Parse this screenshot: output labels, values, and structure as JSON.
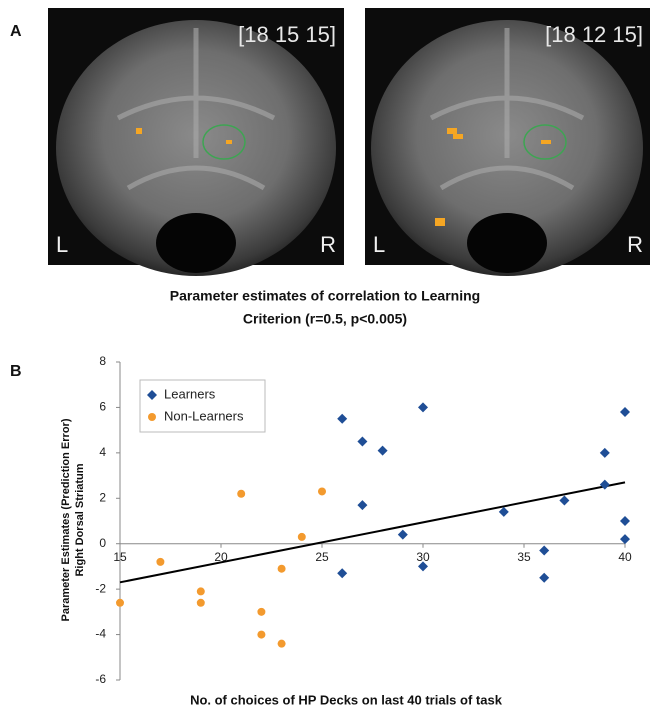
{
  "panel_a": {
    "label": "A",
    "images": [
      {
        "coords": "[18 15 15]",
        "left": "L",
        "right": "R"
      },
      {
        "coords": "[18 12 15]",
        "left": "L",
        "right": "R"
      }
    ],
    "caption": [
      "Parameter estimates of correlation to Learning",
      "Criterion (r=0.5, p<0.005)"
    ]
  },
  "chart_data": {
    "type": "scatter",
    "panel_label": "B",
    "x_label": "No. of choices of HP Decks on last 40 trials of task",
    "y_label": [
      "Parameter Estimates (Prediction Error)",
      "Right Dorsal Striatum"
    ],
    "xlim": [
      15,
      40
    ],
    "xticks": [
      15,
      20,
      25,
      30,
      35,
      40
    ],
    "ylim": [
      -6,
      8
    ],
    "yticks": [
      -6,
      -4,
      -2,
      0,
      2,
      4,
      6,
      8
    ],
    "legend": "top-left",
    "series": [
      {
        "name": "Learners",
        "color": "#1f4e96",
        "marker": "diamond",
        "x": [
          26,
          26,
          27,
          27,
          28,
          29,
          30,
          30,
          34,
          36,
          36,
          37,
          39,
          39,
          40,
          40,
          40
        ],
        "values": [
          5.5,
          -1.3,
          4.5,
          1.7,
          4.1,
          0.4,
          6.0,
          -1.0,
          1.4,
          -0.3,
          -1.5,
          1.9,
          4.0,
          2.6,
          5.8,
          1.0,
          0.2
        ]
      },
      {
        "name": "Non-Learners",
        "color": "#f39a2e",
        "marker": "circle",
        "x": [
          15,
          17,
          19,
          19,
          21,
          22,
          22,
          23,
          23,
          24,
          25
        ],
        "values": [
          -2.6,
          -0.8,
          -2.1,
          -2.6,
          2.2,
          -3.0,
          -4.0,
          -1.1,
          -4.4,
          0.3,
          2.3
        ]
      }
    ],
    "trend_line": {
      "color": "#000000",
      "x": [
        15,
        40
      ],
      "values": [
        -1.7,
        2.7
      ]
    }
  }
}
